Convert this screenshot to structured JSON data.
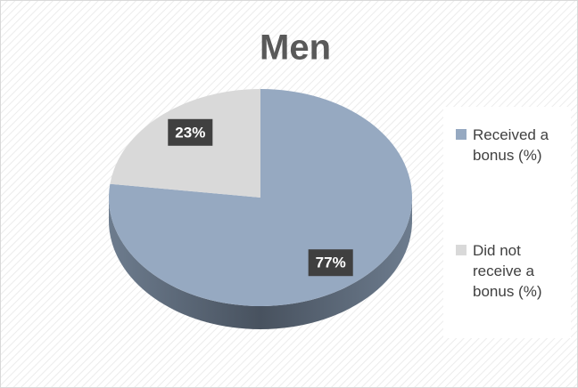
{
  "chart_data": {
    "type": "pie",
    "title": "Men",
    "categories": [
      "Received a bonus (%)",
      "Did not receive a bonus (%)"
    ],
    "values": [
      77,
      23
    ],
    "value_labels": [
      "77%",
      "23%"
    ],
    "colors": [
      "#96a9c1",
      "#d9d9d9"
    ]
  }
}
